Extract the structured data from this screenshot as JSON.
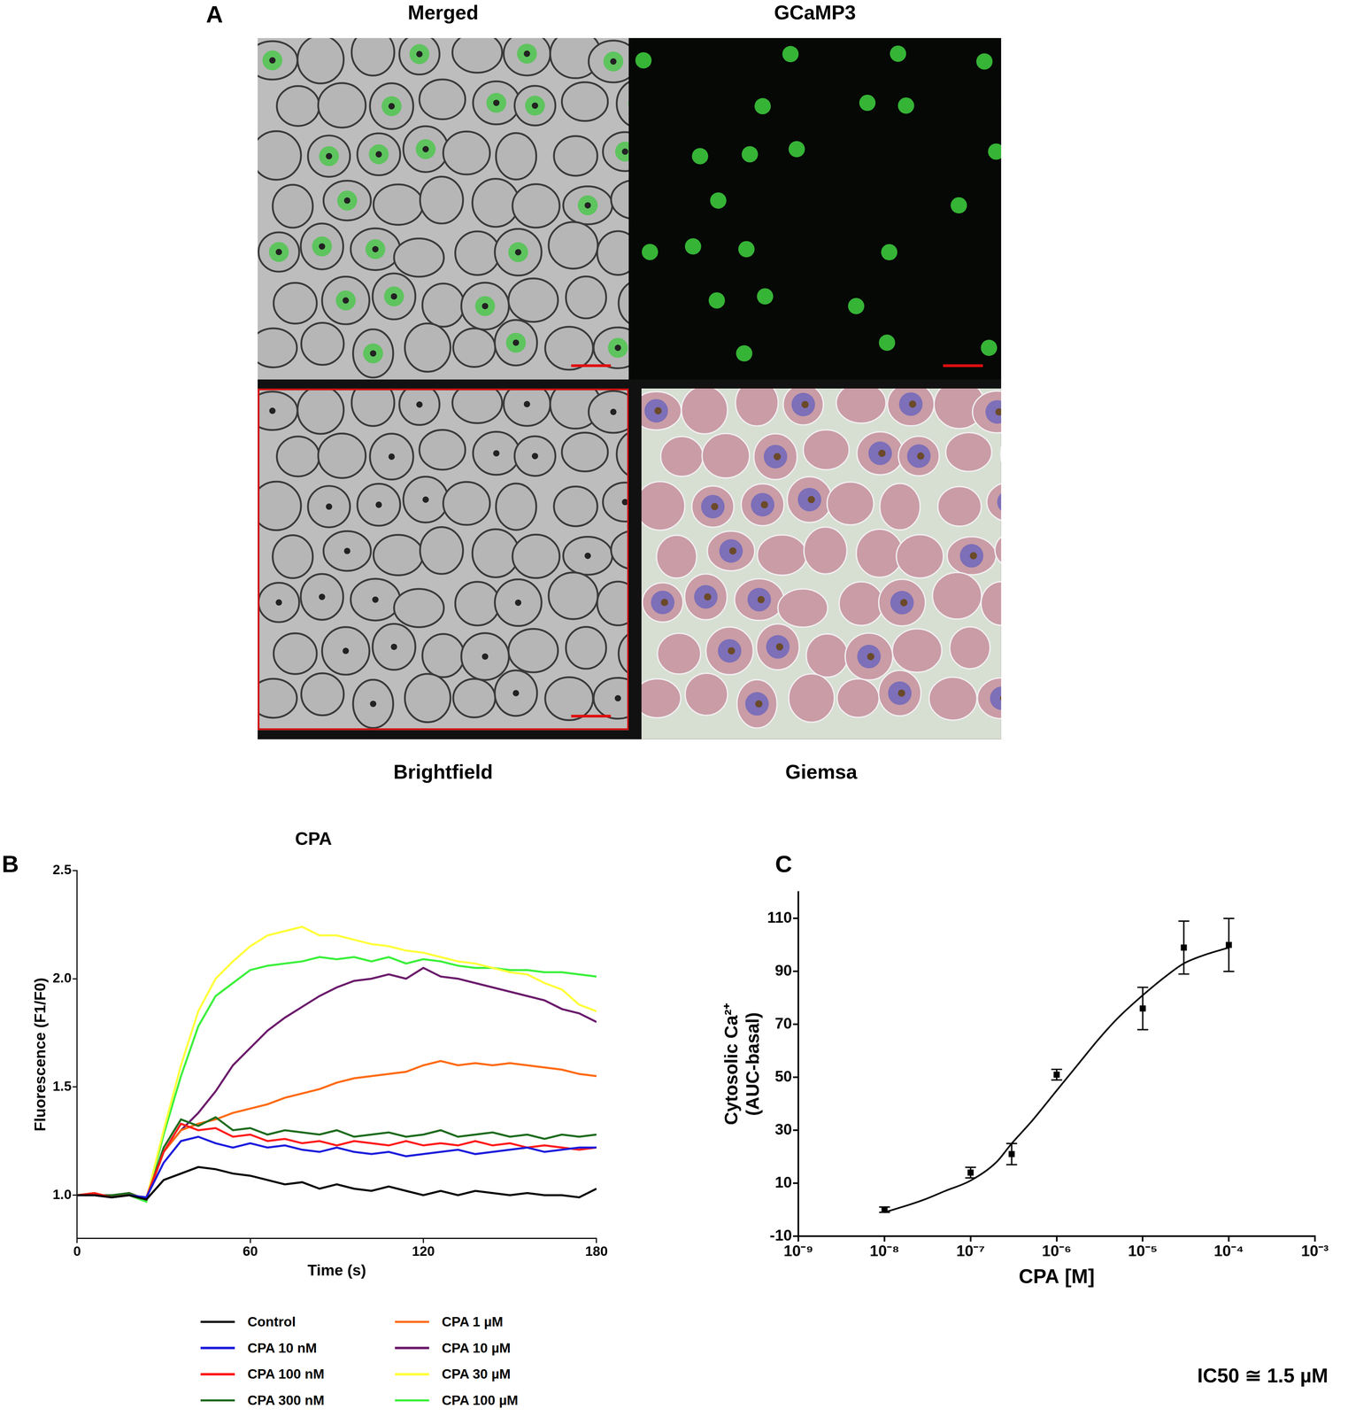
{
  "figure_panels": {
    "panel": "A",
    "images": [
      "Merged",
      "GCaMP3",
      "Brightfield",
      "Giemsa"
    ]
  },
  "chart_data": [
    {
      "panel": "B",
      "type": "line",
      "title": "CPA",
      "x_label": "Time (s)",
      "y_label": "Fluorescence (F1/F0)",
      "x": [
        0,
        6,
        12,
        18,
        24,
        30,
        36,
        42,
        48,
        54,
        60,
        66,
        72,
        78,
        84,
        90,
        96,
        102,
        108,
        114,
        120,
        126,
        132,
        138,
        144,
        150,
        156,
        162,
        168,
        174,
        180
      ],
      "xlim": [
        0,
        180
      ],
      "xticks": [
        0,
        60,
        120,
        180
      ],
      "ylim": [
        0.8,
        2.5
      ],
      "yticks": [
        {
          "value": 1,
          "label": "1.0"
        },
        1.5,
        {
          "value": 2,
          "label": "2.0"
        },
        2.5
      ],
      "grid": false,
      "legend": "bottom",
      "series": [
        {
          "name": "Control",
          "color": "#000000",
          "values": [
            1.0,
            1.0,
            0.99,
            1.0,
            0.98,
            1.07,
            1.1,
            1.13,
            1.12,
            1.1,
            1.09,
            1.07,
            1.05,
            1.06,
            1.03,
            1.05,
            1.03,
            1.02,
            1.04,
            1.02,
            1.0,
            1.02,
            1.0,
            1.02,
            1.01,
            1.0,
            1.01,
            1.0,
            1.0,
            0.99,
            1.03
          ]
        },
        {
          "name": "CPA 10 nM",
          "color": "#1c1cdc",
          "values": [
            1.0,
            1.0,
            0.99,
            1.0,
            0.99,
            1.15,
            1.25,
            1.27,
            1.24,
            1.22,
            1.24,
            1.22,
            1.23,
            1.21,
            1.2,
            1.22,
            1.2,
            1.19,
            1.2,
            1.18,
            1.19,
            1.2,
            1.21,
            1.19,
            1.2,
            1.21,
            1.22,
            1.2,
            1.21,
            1.22,
            1.22
          ]
        },
        {
          "name": "CPA 100 nM",
          "color": "#ff1a1a",
          "values": [
            1.0,
            1.01,
            0.99,
            1.0,
            0.99,
            1.2,
            1.33,
            1.3,
            1.31,
            1.27,
            1.28,
            1.25,
            1.26,
            1.24,
            1.25,
            1.23,
            1.25,
            1.24,
            1.23,
            1.25,
            1.23,
            1.24,
            1.23,
            1.25,
            1.23,
            1.24,
            1.22,
            1.23,
            1.22,
            1.21,
            1.22
          ]
        },
        {
          "name": "CPA 300 nM",
          "color": "#1e6b1e",
          "values": [
            1.0,
            1.0,
            1.0,
            1.01,
            0.98,
            1.22,
            1.35,
            1.32,
            1.36,
            1.3,
            1.31,
            1.28,
            1.3,
            1.29,
            1.28,
            1.3,
            1.27,
            1.28,
            1.29,
            1.27,
            1.28,
            1.3,
            1.27,
            1.28,
            1.29,
            1.27,
            1.28,
            1.26,
            1.28,
            1.27,
            1.28
          ]
        },
        {
          "name": "CPA 1 µM",
          "color": "#ff6a10",
          "values": [
            1.0,
            1.0,
            0.99,
            1.01,
            0.98,
            1.2,
            1.3,
            1.33,
            1.35,
            1.38,
            1.4,
            1.42,
            1.45,
            1.47,
            1.49,
            1.52,
            1.54,
            1.55,
            1.56,
            1.57,
            1.6,
            1.62,
            1.6,
            1.61,
            1.6,
            1.61,
            1.6,
            1.59,
            1.58,
            1.56,
            1.55
          ]
        },
        {
          "name": "CPA 10 µM",
          "color": "#6b1a6b",
          "values": [
            1.0,
            1.0,
            0.99,
            1.01,
            0.98,
            1.2,
            1.3,
            1.38,
            1.48,
            1.6,
            1.68,
            1.76,
            1.82,
            1.87,
            1.92,
            1.96,
            1.99,
            2.0,
            2.02,
            2.0,
            2.05,
            2.01,
            2.0,
            1.98,
            1.96,
            1.94,
            1.92,
            1.9,
            1.86,
            1.84,
            1.8
          ]
        },
        {
          "name": "CPA 30 µM",
          "color": "#ffff3a",
          "values": [
            1.0,
            1.01,
            0.99,
            1.0,
            0.98,
            1.3,
            1.6,
            1.85,
            2.0,
            2.08,
            2.15,
            2.2,
            2.22,
            2.24,
            2.2,
            2.2,
            2.18,
            2.16,
            2.15,
            2.13,
            2.12,
            2.1,
            2.08,
            2.07,
            2.05,
            2.03,
            2.02,
            1.98,
            1.95,
            1.88,
            1.85
          ]
        },
        {
          "name": "CPA 100 µM",
          "color": "#3af03a",
          "values": [
            1.0,
            1.0,
            0.99,
            1.0,
            0.97,
            1.28,
            1.55,
            1.78,
            1.92,
            1.98,
            2.04,
            2.06,
            2.07,
            2.08,
            2.1,
            2.09,
            2.1,
            2.08,
            2.1,
            2.07,
            2.09,
            2.08,
            2.06,
            2.05,
            2.05,
            2.04,
            2.04,
            2.03,
            2.03,
            2.02,
            2.01
          ]
        }
      ]
    },
    {
      "panel": "C",
      "type": "scatter",
      "x_label": "CPA [M]",
      "y_label": [
        "Cytosolic Ca²⁺",
        "(AUC-basal)"
      ],
      "log": "x",
      "marker": "square",
      "color": "#000000",
      "grid": false,
      "x": [
        1e-08,
        1e-07,
        3e-07,
        1e-06,
        1e-05,
        3e-05,
        0.0001
      ],
      "values": [
        0,
        14,
        21,
        51,
        76,
        99,
        100
      ],
      "errors": [
        1,
        2,
        4,
        2,
        8,
        10,
        10
      ],
      "fit": {
        "x": [
          1e-08,
          2e-08,
          3e-08,
          5e-08,
          1e-07,
          2e-07,
          3e-07,
          5e-07,
          1e-06,
          2e-06,
          3e-06,
          5e-06,
          1e-05,
          2e-05,
          3e-05,
          5e-05,
          0.0001
        ],
        "values": [
          -1,
          2,
          4,
          7,
          11,
          18,
          25,
          33,
          45,
          57,
          64,
          72,
          81,
          89,
          93,
          96,
          99
        ]
      },
      "xlim": [
        1e-09,
        0.001
      ],
      "xticks": [
        {
          "value": 1e-09,
          "label": "10⁻⁹"
        },
        {
          "value": 1e-08,
          "label": "10⁻⁸"
        },
        {
          "value": 1e-07,
          "label": "10⁻⁷"
        },
        {
          "value": 1e-06,
          "label": "10⁻⁶"
        },
        {
          "value": 1e-05,
          "label": "10⁻⁵"
        },
        {
          "value": 0.0001,
          "label": "10⁻⁴"
        },
        {
          "value": 0.001,
          "label": "10⁻³"
        }
      ],
      "ylim": [
        -10,
        120
      ],
      "yticks": [
        -10,
        10,
        30,
        50,
        70,
        90,
        110
      ],
      "annotation": "IC50 ≅ 1.5 µM"
    }
  ]
}
